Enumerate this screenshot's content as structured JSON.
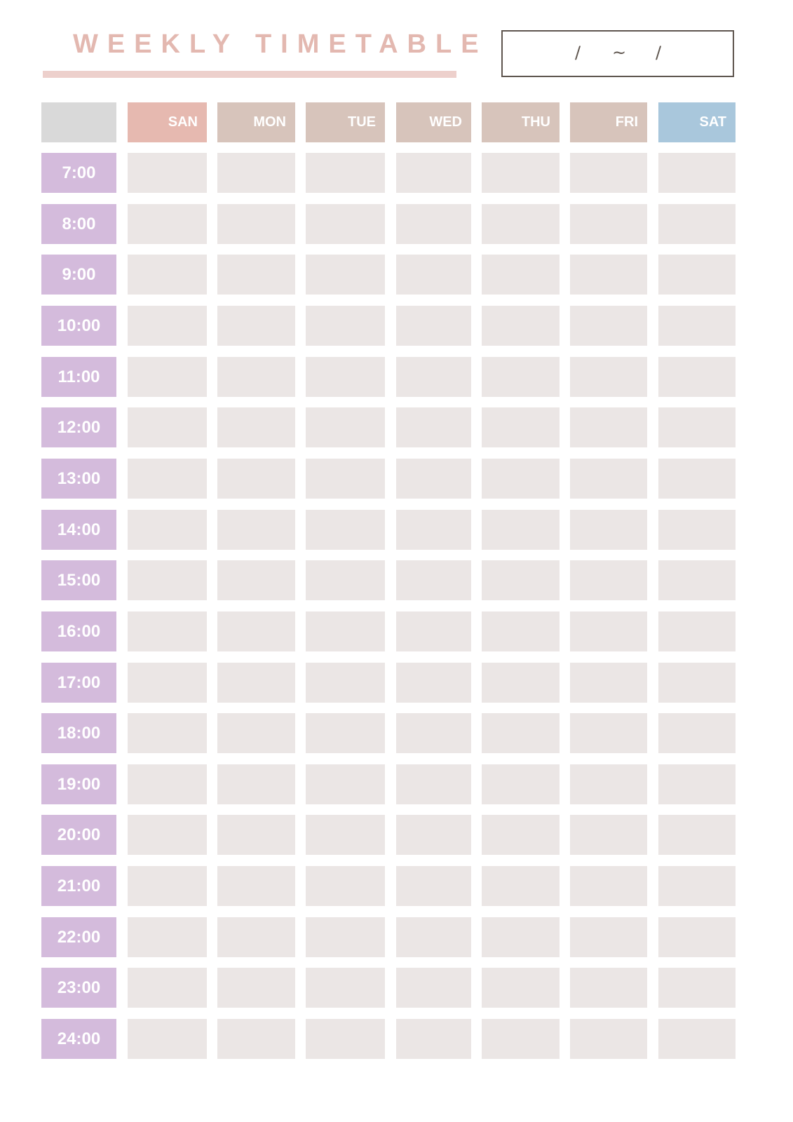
{
  "title": "WEEKLY TIMETABLE",
  "date_range": {
    "sep1": "/",
    "tilde": "~",
    "sep2": "/"
  },
  "days": [
    {
      "label": "SAN",
      "color": "#e6b9b0"
    },
    {
      "label": "MON",
      "color": "#d7c4bb"
    },
    {
      "label": "TUE",
      "color": "#d7c4bb"
    },
    {
      "label": "WED",
      "color": "#d7c4bb"
    },
    {
      "label": "THU",
      "color": "#d7c4bb"
    },
    {
      "label": "FRI",
      "color": "#d7c4bb"
    },
    {
      "label": "SAT",
      "color": "#a9c7dc"
    }
  ],
  "corner_color": "#d9d9d9",
  "time_color": "#d4bbdc",
  "slot_color": "#ebe6e5",
  "times": [
    "7:00",
    "8:00",
    "9:00",
    "10:00",
    "11:00",
    "12:00",
    "13:00",
    "14:00",
    "15:00",
    "16:00",
    "17:00",
    "18:00",
    "19:00",
    "20:00",
    "21:00",
    "22:00",
    "23:00",
    "24:00"
  ]
}
